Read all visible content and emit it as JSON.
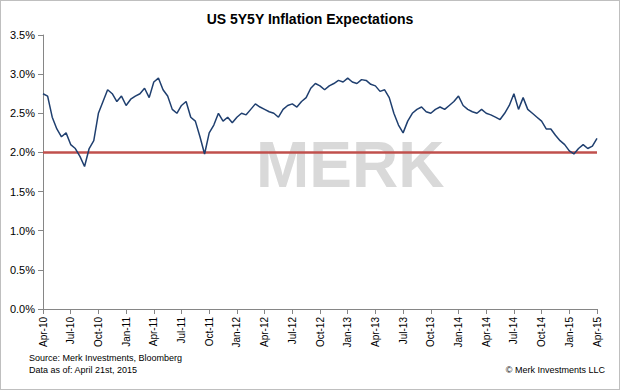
{
  "chart_data": {
    "type": "line",
    "title": "US 5Y5Y Inflation Expectations",
    "source": "Source: Merk Investments, Bloomberg",
    "data_date": "Data as of: April 21st, 2015",
    "copyright": "© Merk Investments LLC",
    "watermark": "MERK",
    "color": "#1f3f6f",
    "grid": false,
    "categories": [
      "Apr-10",
      null,
      null,
      null,
      null,
      null,
      "Jul-10",
      null,
      null,
      null,
      null,
      null,
      "Oct-10",
      null,
      null,
      null,
      null,
      null,
      "Jan-11",
      null,
      null,
      null,
      null,
      null,
      "Apr-11",
      null,
      null,
      null,
      null,
      null,
      "Jul-11",
      null,
      null,
      null,
      null,
      null,
      "Oct-11",
      null,
      null,
      null,
      null,
      null,
      "Jan-12",
      null,
      null,
      null,
      null,
      null,
      "Apr-12",
      null,
      null,
      null,
      null,
      null,
      "Jul-12",
      null,
      null,
      null,
      null,
      null,
      "Oct-12",
      null,
      null,
      null,
      null,
      null,
      "Jan-13",
      null,
      null,
      null,
      null,
      null,
      "Apr-13",
      null,
      null,
      null,
      null,
      null,
      "Jul-13",
      null,
      null,
      null,
      null,
      null,
      "Oct-13",
      null,
      null,
      null,
      null,
      null,
      "Jan-14",
      null,
      null,
      null,
      null,
      null,
      "Apr-14",
      null,
      null,
      null,
      null,
      null,
      "Jul-14",
      null,
      null,
      null,
      null,
      null,
      "Oct-14",
      null,
      null,
      null,
      null,
      null,
      "Jan-15",
      null,
      null,
      null,
      null,
      null,
      "Apr-15"
    ],
    "values": [
      2.75,
      2.72,
      2.45,
      2.3,
      2.2,
      2.25,
      2.1,
      2.05,
      1.95,
      1.82,
      2.05,
      2.15,
      2.5,
      2.65,
      2.8,
      2.75,
      2.65,
      2.72,
      2.6,
      2.68,
      2.72,
      2.75,
      2.82,
      2.7,
      2.9,
      2.95,
      2.8,
      2.72,
      2.55,
      2.5,
      2.6,
      2.65,
      2.45,
      2.4,
      2.2,
      1.98,
      2.25,
      2.35,
      2.5,
      2.4,
      2.45,
      2.38,
      2.45,
      2.5,
      2.48,
      2.55,
      2.62,
      2.58,
      2.55,
      2.52,
      2.5,
      2.45,
      2.55,
      2.6,
      2.62,
      2.58,
      2.65,
      2.7,
      2.82,
      2.88,
      2.85,
      2.8,
      2.85,
      2.88,
      2.92,
      2.9,
      2.95,
      2.9,
      2.88,
      2.93,
      2.92,
      2.87,
      2.85,
      2.78,
      2.8,
      2.7,
      2.5,
      2.35,
      2.25,
      2.4,
      2.5,
      2.55,
      2.58,
      2.52,
      2.5,
      2.55,
      2.58,
      2.55,
      2.6,
      2.65,
      2.72,
      2.6,
      2.55,
      2.52,
      2.5,
      2.55,
      2.5,
      2.48,
      2.45,
      2.42,
      2.5,
      2.6,
      2.75,
      2.55,
      2.7,
      2.55,
      2.5,
      2.45,
      2.4,
      2.3,
      2.3,
      2.22,
      2.15,
      2.1,
      2.02,
      1.98,
      2.05,
      2.1,
      2.05,
      2.08,
      2.18
    ],
    "reference_line": {
      "value": 2.0,
      "color": "#c0504d"
    },
    "ylim": [
      0,
      3.5
    ],
    "yticks": [
      {
        "value": 0,
        "label": "0.0%"
      },
      {
        "value": 0.5,
        "label": "0.5%"
      },
      {
        "value": 1.0,
        "label": "1.0%"
      },
      {
        "value": 1.5,
        "label": "1.5%"
      },
      {
        "value": 2.0,
        "label": "2.0%"
      },
      {
        "value": 2.5,
        "label": "2.5%"
      },
      {
        "value": 3.0,
        "label": "3.0%"
      },
      {
        "value": 3.5,
        "label": "3.5%"
      }
    ]
  }
}
